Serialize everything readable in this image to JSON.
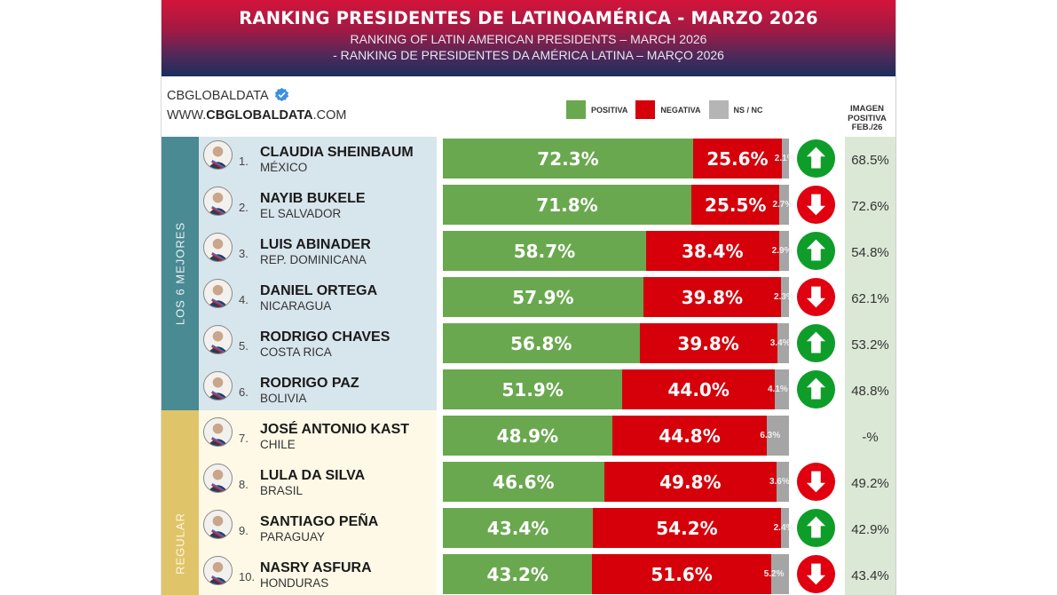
{
  "header": {
    "title": "RANKING PRESIDENTES DE LATINOAMÉRICA - MARZO 2026",
    "subtitle_en": "RANKING OF LATIN AMERICAN PRESIDENTS – MARCH 2026",
    "subtitle_pt": "- RANKING DE PRESIDENTES DA AMÉRICA LATINA – MARÇO 2026"
  },
  "brand": {
    "name": "CBGLOBALDATA",
    "verified_icon": "verified-badge-icon",
    "url_prefix": "WWW.",
    "url_bold": "CBGLOBALDATA",
    "url_suffix": ".COM"
  },
  "legend": {
    "positive": "POSITIVA",
    "negative": "NEGATIVA",
    "ns": "NS / NC"
  },
  "feb_header": [
    "IMAGEN",
    "POSITIVA",
    "FEB./26"
  ],
  "colors": {
    "positive": "#6aa84f",
    "negative": "#d5000a",
    "ns": "#a5a5a5",
    "trend_up": "#0f9d2a",
    "trend_down": "#e0000f"
  },
  "groups": [
    {
      "label": "LOS 6 MEJORES"
    },
    {
      "label": "REGULAR"
    }
  ],
  "chart_data": {
    "type": "bar",
    "stacked": true,
    "orientation": "horizontal",
    "title": "RANKING PRESIDENTES DE LATINOAMÉRICA - MARZO 2026",
    "legend": [
      "POSITIVA",
      "NEGATIVA",
      "NS / NC"
    ],
    "legend_position": "top-right",
    "xlim": [
      0,
      100
    ],
    "categories": [
      "CLAUDIA SHEINBAUM",
      "NAYIB BUKELE",
      "LUIS ABINADER",
      "DANIEL ORTEGA",
      "RODRIGO CHAVES",
      "RODRIGO PAZ",
      "JOSÉ ANTONIO KAST",
      "LULA DA SILVA",
      "SANTIAGO PEÑA",
      "NASRY ASFURA"
    ],
    "series": [
      {
        "name": "POSITIVA",
        "values": [
          72.3,
          71.8,
          58.7,
          57.9,
          56.8,
          51.9,
          48.9,
          46.6,
          43.4,
          43.2
        ]
      },
      {
        "name": "NEGATIVA",
        "values": [
          25.6,
          25.5,
          38.4,
          39.8,
          39.8,
          44.0,
          44.8,
          49.8,
          54.2,
          51.6
        ]
      },
      {
        "name": "NS / NC",
        "values": [
          2.1,
          2.7,
          2.9,
          2.3,
          3.4,
          4.1,
          6.3,
          3.6,
          2.4,
          5.2
        ]
      }
    ]
  },
  "rows": [
    {
      "rank": "1.",
      "name": "CLAUDIA SHEINBAUM",
      "country": "MÉXICO",
      "pos": "72.3%",
      "neg": "25.6%",
      "ns": "2.1%",
      "trend": "up",
      "feb": "68.5%"
    },
    {
      "rank": "2.",
      "name": "NAYIB BUKELE",
      "country": "EL SALVADOR",
      "pos": "71.8%",
      "neg": "25.5%",
      "ns": "2.7%",
      "trend": "down",
      "feb": "72.6%"
    },
    {
      "rank": "3.",
      "name": "LUIS ABINADER",
      "country": "REP. DOMINICANA",
      "pos": "58.7%",
      "neg": "38.4%",
      "ns": "2.9%",
      "trend": "up",
      "feb": "54.8%"
    },
    {
      "rank": "4.",
      "name": "DANIEL ORTEGA",
      "country": "NICARAGUA",
      "pos": "57.9%",
      "neg": "39.8%",
      "ns": "2.3%",
      "trend": "down",
      "feb": "62.1%"
    },
    {
      "rank": "5.",
      "name": "RODRIGO CHAVES",
      "country": "COSTA RICA",
      "pos": "56.8%",
      "neg": "39.8%",
      "ns": "3.4%",
      "trend": "up",
      "feb": "53.2%"
    },
    {
      "rank": "6.",
      "name": "RODRIGO PAZ",
      "country": "BOLIVIA",
      "pos": "51.9%",
      "neg": "44.0%",
      "ns": "4.1%",
      "trend": "up",
      "feb": "48.8%"
    },
    {
      "rank": "7.",
      "name": "JOSÉ ANTONIO KAST",
      "country": "CHILE",
      "pos": "48.9%",
      "neg": "44.8%",
      "ns": "6.3%",
      "trend": "none",
      "feb": "-%"
    },
    {
      "rank": "8.",
      "name": "LULA DA SILVA",
      "country": "BRASIL",
      "pos": "46.6%",
      "neg": "49.8%",
      "ns": "3.6%",
      "trend": "down",
      "feb": "49.2%"
    },
    {
      "rank": "9.",
      "name": "SANTIAGO PEÑA",
      "country": "PARAGUAY",
      "pos": "43.4%",
      "neg": "54.2%",
      "ns": "2.4%",
      "trend": "up",
      "feb": "42.9%"
    },
    {
      "rank": "10.",
      "name": "NASRY ASFURA",
      "country": "HONDURAS",
      "pos": "43.2%",
      "neg": "51.6%",
      "ns": "5.2%",
      "trend": "down",
      "feb": "43.4%"
    }
  ]
}
